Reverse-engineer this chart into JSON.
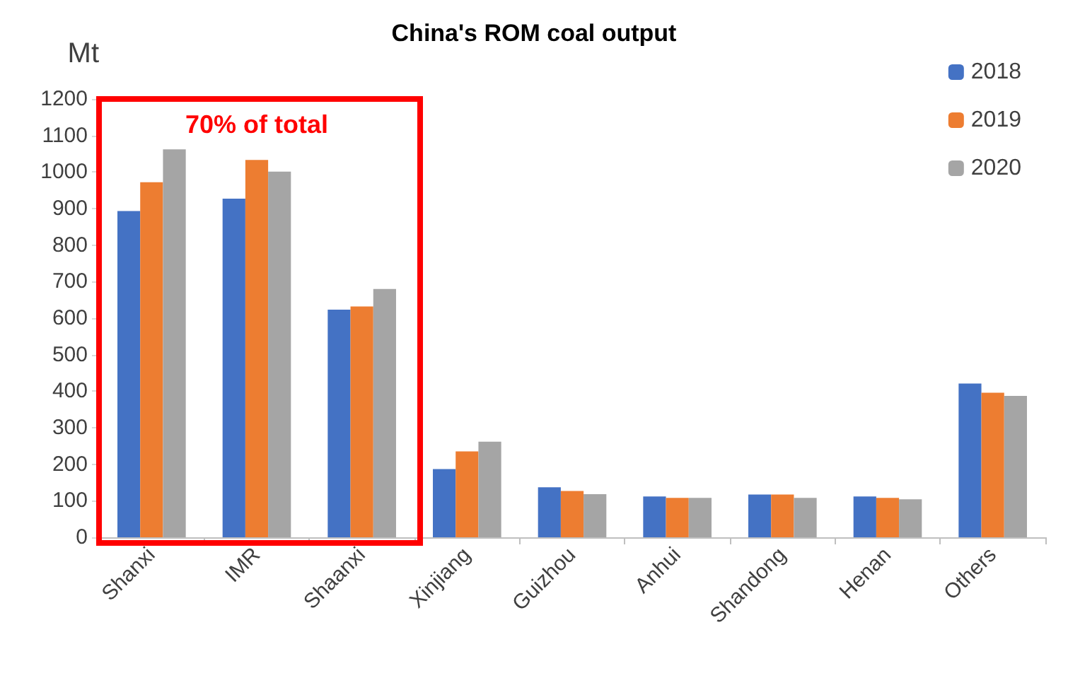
{
  "chart_data": {
    "type": "bar",
    "title": "China's ROM coal output",
    "ylabel": "Mt",
    "categories": [
      "Shanxi",
      "IMR",
      "Shaanxi",
      "Xinjiang",
      "Guizhou",
      "Anhui",
      "Shandong",
      "Henan",
      "Others"
    ],
    "series": [
      {
        "name": "2018",
        "color": "#4472c4",
        "values": [
          893,
          927,
          623,
          187,
          137,
          112,
          117,
          112,
          421
        ]
      },
      {
        "name": "2019",
        "color": "#ed7d31",
        "values": [
          972,
          1033,
          632,
          235,
          127,
          108,
          117,
          108,
          396
        ]
      },
      {
        "name": "2020",
        "color": "#a5a5a5",
        "values": [
          1062,
          1001,
          680,
          262,
          118,
          108,
          108,
          104,
          387
        ]
      }
    ],
    "ylim": [
      0,
      1200
    ],
    "yticks": [
      0,
      100,
      200,
      300,
      400,
      500,
      600,
      700,
      800,
      900,
      1000,
      1100,
      1200
    ],
    "annotations": [
      "70% of total"
    ],
    "grid": false,
    "legend": "top right"
  }
}
